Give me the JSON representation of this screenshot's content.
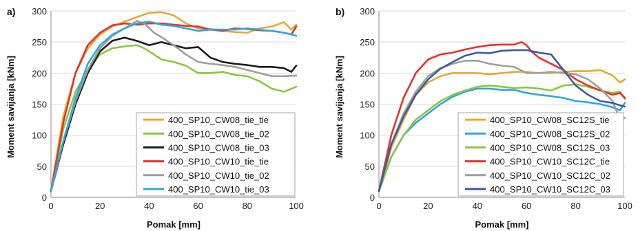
{
  "chart_data": [
    {
      "type": "line",
      "panel_label": "a)",
      "xlabel": "Pomak [mm]",
      "ylabel": "Moment savijanja [kNm]",
      "xlim": [
        0,
        100
      ],
      "ylim": [
        0,
        300
      ],
      "xticks": [
        0,
        20,
        40,
        60,
        80,
        100
      ],
      "yticks": [
        0,
        50,
        100,
        150,
        200,
        250,
        300
      ],
      "grid": true,
      "legend_position": "bottom-right",
      "series": [
        {
          "name": "400_SP10_CW08_tie_tie",
          "color": "#E5A937",
          "x": [
            0,
            5,
            10,
            15,
            20,
            25,
            30,
            35,
            40,
            45,
            50,
            55,
            60,
            65,
            70,
            75,
            80,
            85,
            90,
            95,
            98,
            100
          ],
          "y": [
            10,
            130,
            200,
            240,
            262,
            275,
            283,
            290,
            297,
            298,
            293,
            280,
            272,
            271,
            268,
            266,
            265,
            272,
            275,
            282,
            270,
            278
          ]
        },
        {
          "name": "400_SP10_CW08_tie_02",
          "color": "#8CC63F",
          "x": [
            0,
            5,
            10,
            15,
            20,
            25,
            30,
            35,
            38,
            42,
            45,
            50,
            55,
            60,
            65,
            70,
            75,
            80,
            85,
            90,
            95,
            100
          ],
          "y": [
            10,
            110,
            170,
            205,
            230,
            240,
            243,
            245,
            240,
            230,
            222,
            218,
            212,
            200,
            200,
            202,
            197,
            195,
            187,
            175,
            170,
            178
          ]
        },
        {
          "name": "400_SP10_CW08_tie_03",
          "color": "#1A1A1A",
          "x": [
            0,
            5,
            10,
            15,
            20,
            25,
            30,
            35,
            40,
            45,
            50,
            55,
            60,
            65,
            70,
            75,
            80,
            85,
            90,
            95,
            98,
            100
          ],
          "y": [
            10,
            85,
            150,
            200,
            235,
            252,
            257,
            252,
            245,
            250,
            245,
            240,
            242,
            225,
            218,
            215,
            213,
            210,
            210,
            208,
            202,
            212
          ]
        },
        {
          "name": "400_SP10_CW10_tie_tie",
          "color": "#E8312A",
          "x": [
            0,
            5,
            10,
            15,
            20,
            25,
            30,
            35,
            40,
            45,
            50,
            55,
            60,
            65,
            70,
            75,
            80,
            85,
            90,
            95,
            98,
            100
          ],
          "y": [
            10,
            120,
            200,
            245,
            265,
            277,
            280,
            278,
            280,
            280,
            278,
            276,
            275,
            270,
            268,
            272,
            271,
            269,
            268,
            265,
            262,
            275
          ]
        },
        {
          "name": "400_SP10_CW10_tie_02",
          "color": "#9E9E9E",
          "x": [
            0,
            5,
            10,
            15,
            20,
            25,
            30,
            35,
            38,
            42,
            45,
            50,
            55,
            60,
            65,
            70,
            75,
            80,
            85,
            90,
            95,
            100
          ],
          "y": [
            10,
            90,
            155,
            205,
            240,
            260,
            272,
            284,
            280,
            265,
            258,
            245,
            230,
            218,
            215,
            213,
            210,
            205,
            200,
            195,
            195,
            196
          ]
        },
        {
          "name": "400_SP10_CW10_tie_03",
          "color": "#2BA9DF",
          "x": [
            0,
            5,
            10,
            15,
            20,
            25,
            30,
            35,
            40,
            45,
            50,
            55,
            60,
            65,
            70,
            75,
            80,
            85,
            90,
            95,
            98,
            100
          ],
          "y": [
            10,
            90,
            160,
            215,
            245,
            262,
            272,
            280,
            283,
            278,
            276,
            272,
            268,
            270,
            270,
            270,
            272,
            270,
            268,
            265,
            262,
            260
          ]
        }
      ]
    },
    {
      "type": "line",
      "panel_label": "b)",
      "xlabel": "Pomak [mm]",
      "ylabel": "Moment savijanja [kNm]",
      "xlim": [
        0,
        100
      ],
      "ylim": [
        0,
        300
      ],
      "xticks": [
        0,
        20,
        40,
        60,
        80,
        100
      ],
      "yticks": [
        0,
        50,
        100,
        150,
        200,
        250,
        300
      ],
      "grid": true,
      "legend_position": "bottom-right",
      "series": [
        {
          "name": "400_SP10_CW08_SC12S_tie",
          "color": "#E5A937",
          "x": [
            0,
            5,
            10,
            15,
            20,
            25,
            30,
            35,
            40,
            45,
            50,
            55,
            60,
            65,
            70,
            75,
            80,
            85,
            90,
            95,
            98,
            100
          ],
          "y": [
            10,
            80,
            125,
            165,
            185,
            195,
            200,
            200,
            200,
            198,
            200,
            202,
            202,
            200,
            200,
            202,
            203,
            203,
            205,
            196,
            185,
            190
          ]
        },
        {
          "name": "400_SP10_CW08_SC12S_02",
          "color": "#2BA9DF",
          "x": [
            0,
            5,
            10,
            15,
            20,
            25,
            30,
            35,
            40,
            45,
            50,
            55,
            60,
            65,
            70,
            75,
            80,
            85,
            90,
            95,
            98,
            100
          ],
          "y": [
            10,
            65,
            100,
            120,
            135,
            150,
            162,
            170,
            175,
            175,
            173,
            173,
            168,
            165,
            163,
            160,
            155,
            153,
            150,
            145,
            140,
            152
          ]
        },
        {
          "name": "400_SP10_CW08_SC12S_03",
          "color": "#8CC63F",
          "x": [
            0,
            5,
            10,
            15,
            20,
            25,
            30,
            35,
            40,
            45,
            50,
            55,
            60,
            65,
            70,
            75,
            80,
            85,
            90,
            95,
            98,
            100
          ],
          "y": [
            10,
            65,
            100,
            125,
            140,
            155,
            165,
            172,
            178,
            180,
            178,
            176,
            177,
            175,
            172,
            180,
            182,
            178,
            172,
            168,
            170,
            158
          ]
        },
        {
          "name": "400_SP10_CW10_SC12C_tie",
          "color": "#E8312A",
          "x": [
            0,
            5,
            10,
            15,
            20,
            25,
            30,
            35,
            40,
            45,
            50,
            55,
            58,
            60,
            62,
            65,
            70,
            75,
            80,
            85,
            90,
            95,
            98,
            100
          ],
          "y": [
            10,
            100,
            160,
            200,
            222,
            230,
            233,
            238,
            242,
            245,
            246,
            246,
            250,
            245,
            235,
            225,
            215,
            205,
            190,
            180,
            172,
            165,
            168,
            160
          ]
        },
        {
          "name": "400_SP10_CW10_SC12C_02",
          "color": "#9E9E9E",
          "x": [
            0,
            5,
            10,
            15,
            20,
            25,
            30,
            35,
            40,
            45,
            50,
            55,
            60,
            65,
            70,
            75,
            80,
            85,
            90,
            95,
            98,
            100
          ],
          "y": [
            10,
            85,
            135,
            170,
            195,
            208,
            215,
            220,
            220,
            215,
            212,
            210,
            200,
            200,
            202,
            200,
            198,
            190,
            175,
            155,
            125,
            128
          ]
        },
        {
          "name": "400_SP10_CW10_SC12C_03",
          "color": "#3A5BA0",
          "x": [
            0,
            5,
            10,
            15,
            20,
            25,
            30,
            35,
            40,
            45,
            50,
            55,
            60,
            65,
            70,
            75,
            80,
            85,
            90,
            95,
            98,
            100
          ],
          "y": [
            10,
            85,
            130,
            165,
            190,
            207,
            218,
            228,
            233,
            232,
            236,
            237,
            237,
            233,
            230,
            205,
            180,
            165,
            155,
            152,
            148,
            146
          ]
        }
      ]
    }
  ]
}
